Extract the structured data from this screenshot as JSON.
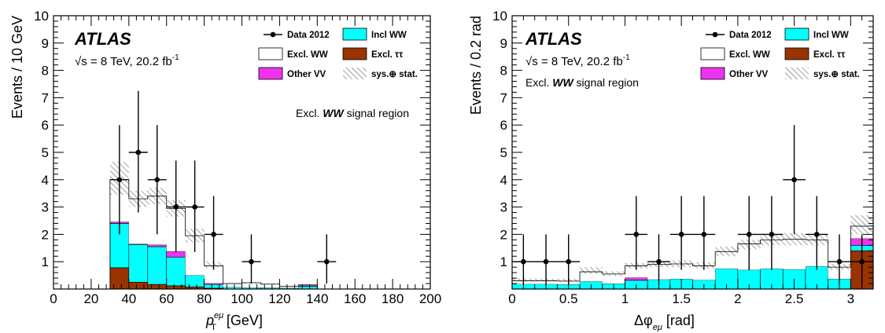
{
  "chart_data": [
    {
      "type": "bar",
      "stacked_histogram": true,
      "x_label_main": "p",
      "x_label_super": "eμ",
      "x_label_sub": "T",
      "x_label_unit": "[GeV]",
      "ylabel": "Events / 10 GeV",
      "xlim": [
        0,
        200
      ],
      "ylim": [
        0,
        10
      ],
      "x_ticks": [
        "0",
        "20",
        "40",
        "60",
        "80",
        "100",
        "120",
        "140",
        "160",
        "180",
        "200"
      ],
      "y_ticks": [
        "1",
        "2",
        "3",
        "4",
        "5",
        "6",
        "7",
        "8",
        "9",
        "10"
      ],
      "experiment_label": "ATLAS",
      "energy_text": "√s = 8 TeV, 20.2 fb",
      "energy_sup": "-1",
      "region_prefix": "Excl. ",
      "region_italic": "WW",
      "region_suffix": " signal region",
      "region_position": "right",
      "bin_edges": [
        30,
        40,
        50,
        60,
        70,
        80,
        90,
        100,
        110,
        120,
        130,
        140,
        150
      ],
      "series": [
        {
          "name": "Excl. ττ",
          "color": "#993300",
          "values": [
            0.78,
            0.25,
            0.17,
            0.12,
            0.08,
            0.03,
            0.0,
            0.0,
            0.0,
            0.0,
            0.0,
            0.0
          ]
        },
        {
          "name": "Incl WW",
          "color": "#00ffff",
          "values": [
            1.62,
            1.38,
            1.38,
            1.05,
            0.42,
            0.14,
            0.07,
            0.05,
            0.05,
            0.04,
            0.1,
            0.0
          ]
        },
        {
          "name": "Other VV",
          "color": "#ee33ee",
          "values": [
            0.06,
            0.02,
            0.07,
            0.21,
            0.0,
            0.04,
            0.0,
            0.0,
            0.0,
            0.0,
            0.03,
            0.0
          ]
        },
        {
          "name": "Excl. WW",
          "color": "#ffffff",
          "values": [
            1.54,
            1.65,
            1.78,
            1.57,
            1.45,
            0.64,
            0.13,
            0.18,
            0.13,
            0.06,
            0.02,
            0.0
          ]
        }
      ],
      "uncertainty_band": [
        {
          "lo": 3.45,
          "hi": 4.65
        },
        {
          "lo": 3.0,
          "hi": 3.6
        },
        {
          "lo": 3.1,
          "hi": 3.7
        },
        {
          "lo": 2.65,
          "hi": 3.25
        },
        {
          "lo": 1.7,
          "hi": 2.2
        },
        {
          "lo": 0.78,
          "hi": 1.0
        },
        {
          "lo": 0.18,
          "hi": 0.22
        },
        {
          "lo": 0.2,
          "hi": 0.26
        },
        {
          "lo": 0.16,
          "hi": 0.21
        },
        {
          "lo": 0.09,
          "hi": 0.12
        },
        {
          "lo": 0.12,
          "hi": 0.18
        },
        {
          "lo": 0.0,
          "hi": 0.0
        }
      ],
      "data_points": [
        {
          "x": 35,
          "y": 4,
          "err_lo": 2.0,
          "err_hi": 2.0
        },
        {
          "x": 45,
          "y": 5,
          "err_lo": 2.2,
          "err_hi": 2.25
        },
        {
          "x": 55,
          "y": 4,
          "err_lo": 2.0,
          "err_hi": 2.0
        },
        {
          "x": 65,
          "y": 3,
          "err_lo": 1.65,
          "err_hi": 1.7
        },
        {
          "x": 75,
          "y": 3,
          "err_lo": 1.65,
          "err_hi": 1.7
        },
        {
          "x": 85,
          "y": 2,
          "err_lo": 1.3,
          "err_hi": 1.4
        },
        {
          "x": 105,
          "y": 1,
          "err_lo": 0.8,
          "err_hi": 1.0
        },
        {
          "x": 145,
          "y": 1,
          "err_lo": 0.8,
          "err_hi": 1.0
        }
      ],
      "legend": {
        "data": "Data 2012",
        "incl_ww": "Incl WW",
        "excl_ww": "Excl. WW",
        "excl_tautau": "Excl. ττ",
        "other_vv": "Other VV",
        "sys_stat": "sys.⊕ stat."
      }
    },
    {
      "type": "bar",
      "stacked_histogram": true,
      "x_label_main": "Δφ",
      "x_label_sub": "eμ",
      "x_label_unit": "[rad]",
      "ylabel": "Events / 0.2 rad",
      "xlim": [
        0,
        3.2
      ],
      "ylim": [
        0,
        10
      ],
      "x_ticks": [
        "0",
        "0.5",
        "1",
        "1.5",
        "2",
        "2.5",
        "3"
      ],
      "x_tick_values": [
        0,
        0.5,
        1,
        1.5,
        2,
        2.5,
        3
      ],
      "y_ticks": [
        "1",
        "2",
        "3",
        "4",
        "5",
        "6",
        "7",
        "8",
        "9",
        "10"
      ],
      "experiment_label": "ATLAS",
      "energy_text": "√s = 8 TeV, 20.2 fb",
      "energy_sup": "-1",
      "region_prefix": "Excl. ",
      "region_italic": "WW",
      "region_suffix": " signal region",
      "region_position": "left",
      "bin_edges": [
        0,
        0.2,
        0.4,
        0.6,
        0.8,
        1.0,
        1.2,
        1.4,
        1.6,
        1.8,
        2.0,
        2.2,
        2.4,
        2.6,
        2.8,
        3.0,
        3.2
      ],
      "series": [
        {
          "name": "Excl. ττ",
          "color": "#993300",
          "values": [
            0.0,
            0.0,
            0.0,
            0.0,
            0.0,
            0.0,
            0.0,
            0.0,
            0.0,
            0.0,
            0.0,
            0.0,
            0.0,
            0.0,
            0.0,
            1.4
          ]
        },
        {
          "name": "Incl WW",
          "color": "#00ffff",
          "values": [
            0.18,
            0.18,
            0.17,
            0.28,
            0.2,
            0.32,
            0.35,
            0.37,
            0.33,
            0.75,
            0.7,
            0.75,
            0.72,
            0.83,
            0.37,
            0.2
          ]
        },
        {
          "name": "Other VV",
          "color": "#ee33ee",
          "values": [
            0.0,
            0.0,
            0.0,
            0.0,
            0.0,
            0.1,
            0.0,
            0.0,
            0.0,
            0.0,
            0.0,
            0.0,
            0.0,
            0.0,
            0.0,
            0.25
          ]
        },
        {
          "name": "Excl. WW",
          "color": "#ffffff",
          "values": [
            0.12,
            0.12,
            0.12,
            0.35,
            0.35,
            0.43,
            0.55,
            0.55,
            0.52,
            0.62,
            0.95,
            1.05,
            1.1,
            0.97,
            0.43,
            0.45
          ]
        }
      ],
      "uncertainty_band": [
        {
          "lo": 0.27,
          "hi": 0.39
        },
        {
          "lo": 0.27,
          "hi": 0.39
        },
        {
          "lo": 0.26,
          "hi": 0.38
        },
        {
          "lo": 0.55,
          "hi": 0.8
        },
        {
          "lo": 0.47,
          "hi": 0.65
        },
        {
          "lo": 0.75,
          "hi": 0.95
        },
        {
          "lo": 0.8,
          "hi": 1.0
        },
        {
          "lo": 0.8,
          "hi": 1.05
        },
        {
          "lo": 0.75,
          "hi": 0.98
        },
        {
          "lo": 1.2,
          "hi": 1.55
        },
        {
          "lo": 1.45,
          "hi": 1.8
        },
        {
          "lo": 1.6,
          "hi": 2.0
        },
        {
          "lo": 1.6,
          "hi": 2.05
        },
        {
          "lo": 1.6,
          "hi": 2.0
        },
        {
          "lo": 0.7,
          "hi": 0.92
        },
        {
          "lo": 2.0,
          "hi": 2.7
        }
      ],
      "data_points": [
        {
          "x": 0.1,
          "y": 1,
          "err_lo": 0.85,
          "err_hi": 1.0
        },
        {
          "x": 0.3,
          "y": 1,
          "err_lo": 0.85,
          "err_hi": 1.0
        },
        {
          "x": 0.5,
          "y": 1,
          "err_lo": 0.85,
          "err_hi": 1.0
        },
        {
          "x": 1.1,
          "y": 2,
          "err_lo": 1.3,
          "err_hi": 1.4
        },
        {
          "x": 1.3,
          "y": 1,
          "err_lo": 0.85,
          "err_hi": 1.0
        },
        {
          "x": 1.5,
          "y": 2,
          "err_lo": 1.3,
          "err_hi": 1.4
        },
        {
          "x": 1.7,
          "y": 2,
          "err_lo": 1.3,
          "err_hi": 1.4
        },
        {
          "x": 2.1,
          "y": 2,
          "err_lo": 1.3,
          "err_hi": 1.4
        },
        {
          "x": 2.3,
          "y": 2,
          "err_lo": 1.3,
          "err_hi": 1.4
        },
        {
          "x": 2.5,
          "y": 4,
          "err_lo": 2.0,
          "err_hi": 2.0
        },
        {
          "x": 2.7,
          "y": 2,
          "err_lo": 1.3,
          "err_hi": 1.4
        },
        {
          "x": 2.9,
          "y": 1,
          "err_lo": 0.85,
          "err_hi": 1.0
        },
        {
          "x": 3.1,
          "y": 1,
          "err_lo": 0.85,
          "err_hi": 1.0
        }
      ],
      "legend": {
        "data": "Data 2012",
        "incl_ww": "Incl WW",
        "excl_ww": "Excl. WW",
        "excl_tautau": "Excl. ττ",
        "other_vv": "Other VV",
        "sys_stat": "sys.⊕ stat."
      }
    }
  ]
}
